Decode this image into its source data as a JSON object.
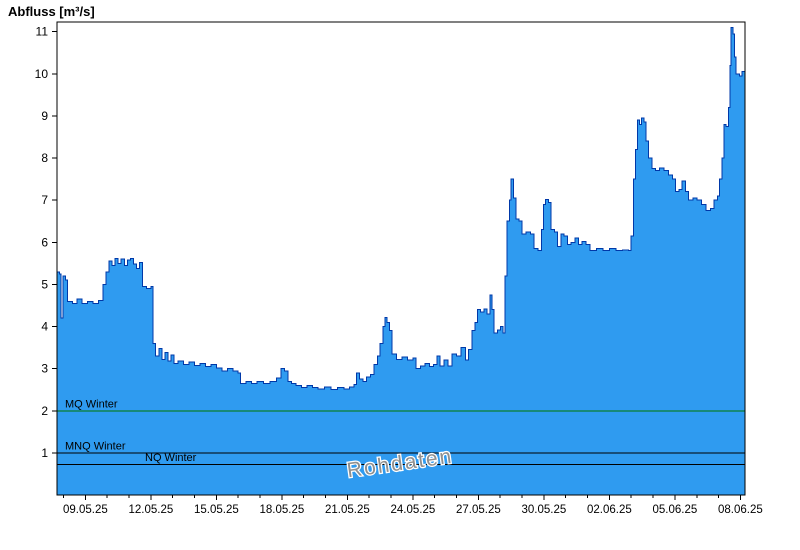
{
  "header": {
    "title": "Abfluss [m³/s]"
  },
  "colors": {
    "background": "#FFFFFF",
    "area_fill": "#2F9BF0",
    "area_stroke": "#0038A8",
    "axis": "#000000",
    "text": "#000000",
    "mq_line": "#007700",
    "mnq_line": "#000000",
    "nq_line": "#000000",
    "watermark": "#8F8F8F"
  },
  "chart_data": {
    "type": "area",
    "title": "Abfluss [m³/s]",
    "ylabel": "Abfluss [m³/s]",
    "xlabel": "",
    "grid": false,
    "legend": "none",
    "watermark": "Rohdaten",
    "ylim": [
      0,
      11.23
    ],
    "yticks": [
      1,
      2,
      3,
      4,
      5,
      6,
      7,
      8,
      9,
      10,
      11
    ],
    "xlim_days": [
      -1.3,
      30.21
    ],
    "xtick_days": [
      0,
      3,
      6,
      9,
      12,
      15,
      18,
      21,
      24,
      27,
      30
    ],
    "xtick_labels": [
      "09.05.25",
      "12.05.25",
      "15.05.25",
      "18.05.25",
      "21.05.25",
      "24.05.25",
      "27.05.25",
      "30.05.25",
      "02.06.25",
      "05.06.25",
      "08.06.25"
    ],
    "reference_lines": [
      {
        "label": "MQ Winter",
        "value": 2.0,
        "color": "#007700",
        "label_x": 65
      },
      {
        "label": "MNQ Winter",
        "value": 1.0,
        "color": "#000000",
        "label_x": 65
      },
      {
        "label": "NQ Winter",
        "value": 0.72,
        "color": "#000000",
        "label_x": 145
      }
    ],
    "series": [
      {
        "name": "Rohdaten",
        "unit": "m³/s",
        "points": [
          [
            -1.3,
            5.3
          ],
          [
            -1.18,
            5.25
          ],
          [
            -1.12,
            4.2
          ],
          [
            -1.02,
            5.2
          ],
          [
            -0.9,
            5.1
          ],
          [
            -0.82,
            4.6
          ],
          [
            -0.6,
            4.55
          ],
          [
            -0.38,
            4.65
          ],
          [
            -0.15,
            4.55
          ],
          [
            0.1,
            4.6
          ],
          [
            0.35,
            4.55
          ],
          [
            0.6,
            4.62
          ],
          [
            0.8,
            5.0
          ],
          [
            0.95,
            5.3
          ],
          [
            1.08,
            5.55
          ],
          [
            1.22,
            5.45
          ],
          [
            1.36,
            5.62
          ],
          [
            1.5,
            5.5
          ],
          [
            1.64,
            5.6
          ],
          [
            1.78,
            5.45
          ],
          [
            1.92,
            5.58
          ],
          [
            2.06,
            5.62
          ],
          [
            2.2,
            5.48
          ],
          [
            2.34,
            5.38
          ],
          [
            2.48,
            5.52
          ],
          [
            2.62,
            4.95
          ],
          [
            2.8,
            4.9
          ],
          [
            3.0,
            4.95
          ],
          [
            3.1,
            3.6
          ],
          [
            3.22,
            3.3
          ],
          [
            3.36,
            3.48
          ],
          [
            3.5,
            3.22
          ],
          [
            3.64,
            3.38
          ],
          [
            3.78,
            3.18
          ],
          [
            3.92,
            3.32
          ],
          [
            4.06,
            3.12
          ],
          [
            4.25,
            3.18
          ],
          [
            4.5,
            3.1
          ],
          [
            4.75,
            3.16
          ],
          [
            5.0,
            3.08
          ],
          [
            5.25,
            3.12
          ],
          [
            5.5,
            3.05
          ],
          [
            5.75,
            3.1
          ],
          [
            6.0,
            3.02
          ],
          [
            6.25,
            2.95
          ],
          [
            6.5,
            3.0
          ],
          [
            6.75,
            2.95
          ],
          [
            7.0,
            2.9
          ],
          [
            7.1,
            2.65
          ],
          [
            7.35,
            2.7
          ],
          [
            7.6,
            2.65
          ],
          [
            7.85,
            2.7
          ],
          [
            8.15,
            2.65
          ],
          [
            8.45,
            2.7
          ],
          [
            8.75,
            2.78
          ],
          [
            8.95,
            3.0
          ],
          [
            9.12,
            2.95
          ],
          [
            9.28,
            2.7
          ],
          [
            9.45,
            2.65
          ],
          [
            9.65,
            2.6
          ],
          [
            9.9,
            2.55
          ],
          [
            10.15,
            2.6
          ],
          [
            10.4,
            2.55
          ],
          [
            10.65,
            2.52
          ],
          [
            10.95,
            2.56
          ],
          [
            11.25,
            2.5
          ],
          [
            11.55,
            2.55
          ],
          [
            11.85,
            2.52
          ],
          [
            12.1,
            2.56
          ],
          [
            12.3,
            2.62
          ],
          [
            12.42,
            2.9
          ],
          [
            12.56,
            2.76
          ],
          [
            12.72,
            2.7
          ],
          [
            12.88,
            2.8
          ],
          [
            13.05,
            2.86
          ],
          [
            13.22,
            3.1
          ],
          [
            13.38,
            3.3
          ],
          [
            13.5,
            3.6
          ],
          [
            13.62,
            4.0
          ],
          [
            13.72,
            4.22
          ],
          [
            13.82,
            4.1
          ],
          [
            13.92,
            3.9
          ],
          [
            14.05,
            3.35
          ],
          [
            14.25,
            3.22
          ],
          [
            14.5,
            3.28
          ],
          [
            14.75,
            3.2
          ],
          [
            15.0,
            3.25
          ],
          [
            15.15,
            3.0
          ],
          [
            15.35,
            3.06
          ],
          [
            15.55,
            3.12
          ],
          [
            15.75,
            3.05
          ],
          [
            15.95,
            3.1
          ],
          [
            16.1,
            3.3
          ],
          [
            16.25,
            3.06
          ],
          [
            16.42,
            3.2
          ],
          [
            16.6,
            3.06
          ],
          [
            16.8,
            3.35
          ],
          [
            17.0,
            3.3
          ],
          [
            17.2,
            3.5
          ],
          [
            17.4,
            3.2
          ],
          [
            17.55,
            3.45
          ],
          [
            17.7,
            3.9
          ],
          [
            17.85,
            4.1
          ],
          [
            17.95,
            4.4
          ],
          [
            18.1,
            4.35
          ],
          [
            18.25,
            4.42
          ],
          [
            18.4,
            4.3
          ],
          [
            18.52,
            4.75
          ],
          [
            18.62,
            4.4
          ],
          [
            18.72,
            3.85
          ],
          [
            18.88,
            3.92
          ],
          [
            19.02,
            4.0
          ],
          [
            19.12,
            3.85
          ],
          [
            19.22,
            5.2
          ],
          [
            19.32,
            6.5
          ],
          [
            19.42,
            7.0
          ],
          [
            19.5,
            7.5
          ],
          [
            19.6,
            7.05
          ],
          [
            19.72,
            6.55
          ],
          [
            19.85,
            6.5
          ],
          [
            20.0,
            6.2
          ],
          [
            20.18,
            6.25
          ],
          [
            20.38,
            6.2
          ],
          [
            20.55,
            5.85
          ],
          [
            20.72,
            5.8
          ],
          [
            20.88,
            6.3
          ],
          [
            20.98,
            6.9
          ],
          [
            21.08,
            7.02
          ],
          [
            21.2,
            6.95
          ],
          [
            21.32,
            6.3
          ],
          [
            21.48,
            6.25
          ],
          [
            21.62,
            5.9
          ],
          [
            21.78,
            6.2
          ],
          [
            21.92,
            6.15
          ],
          [
            22.08,
            5.95
          ],
          [
            22.25,
            6.0
          ],
          [
            22.42,
            6.1
          ],
          [
            22.58,
            5.95
          ],
          [
            22.75,
            6.02
          ],
          [
            22.92,
            5.95
          ],
          [
            23.1,
            5.8
          ],
          [
            23.4,
            5.85
          ],
          [
            23.7,
            5.8
          ],
          [
            24.0,
            5.85
          ],
          [
            24.3,
            5.8
          ],
          [
            24.6,
            5.82
          ],
          [
            24.88,
            5.8
          ],
          [
            25.0,
            6.15
          ],
          [
            25.1,
            7.5
          ],
          [
            25.2,
            8.2
          ],
          [
            25.28,
            8.9
          ],
          [
            25.38,
            8.8
          ],
          [
            25.48,
            8.95
          ],
          [
            25.58,
            8.85
          ],
          [
            25.68,
            8.4
          ],
          [
            25.8,
            8.0
          ],
          [
            25.95,
            7.75
          ],
          [
            26.12,
            7.7
          ],
          [
            26.3,
            7.76
          ],
          [
            26.5,
            7.7
          ],
          [
            26.7,
            7.6
          ],
          [
            26.88,
            7.5
          ],
          [
            27.02,
            7.2
          ],
          [
            27.18,
            7.25
          ],
          [
            27.32,
            7.45
          ],
          [
            27.48,
            7.2
          ],
          [
            27.62,
            7.0
          ],
          [
            27.82,
            7.05
          ],
          [
            28.02,
            7.0
          ],
          [
            28.22,
            6.9
          ],
          [
            28.42,
            6.75
          ],
          [
            28.62,
            6.8
          ],
          [
            28.8,
            7.0
          ],
          [
            28.95,
            7.1
          ],
          [
            29.05,
            7.5
          ],
          [
            29.15,
            8.0
          ],
          [
            29.25,
            8.8
          ],
          [
            29.35,
            8.75
          ],
          [
            29.45,
            9.2
          ],
          [
            29.52,
            10.2
          ],
          [
            29.58,
            11.1
          ],
          [
            29.66,
            10.95
          ],
          [
            29.72,
            10.4
          ],
          [
            29.8,
            10.0
          ],
          [
            29.95,
            9.95
          ],
          [
            30.08,
            10.05
          ],
          [
            30.21,
            10.0
          ]
        ]
      }
    ]
  }
}
